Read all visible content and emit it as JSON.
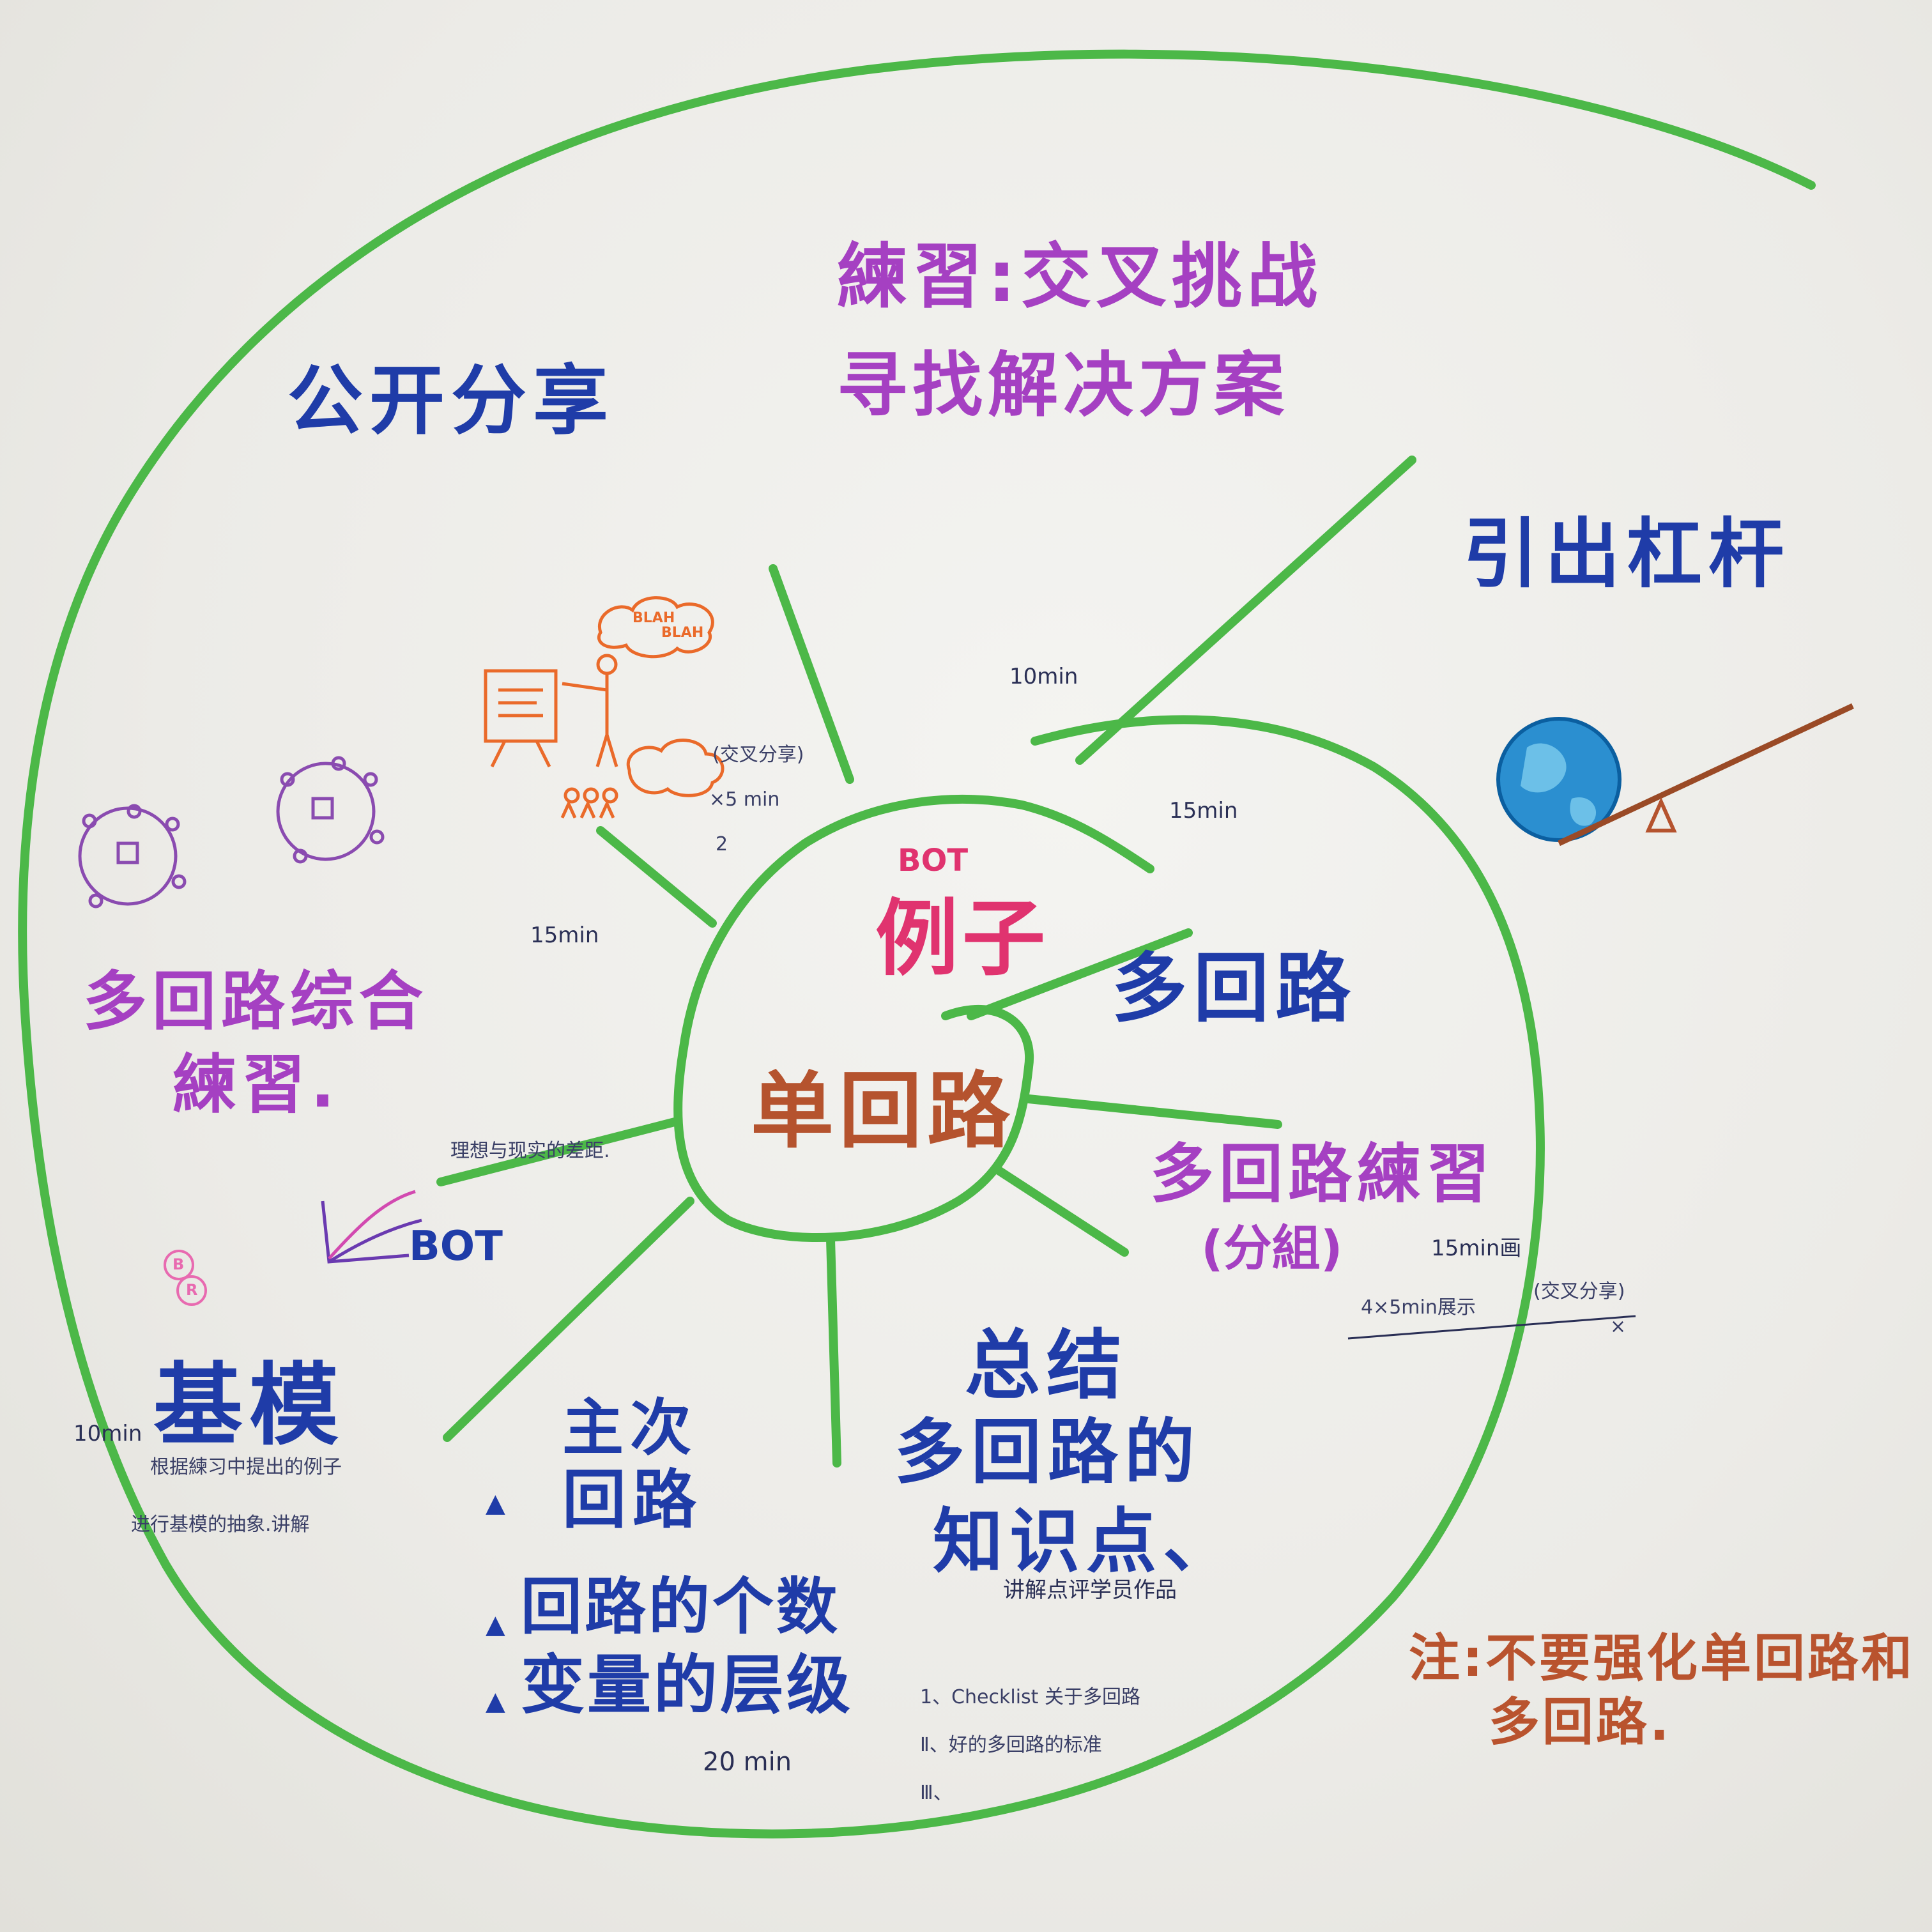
{
  "center": {
    "top_tag": "BOT",
    "example": "例子",
    "core": "单回路"
  },
  "nodes": {
    "public_share": "公开分享",
    "cross_challenge_line1": "練習:交叉挑战",
    "cross_challenge_line2": "寻找解决方案",
    "leverage": "引出杠杆",
    "multi_loop": "多回路",
    "multi_loop_practice": "多回路練習",
    "group": "(分組)",
    "summary": "总结",
    "summary_line2": "多回路的",
    "summary_line3": "知识点、",
    "comment_works": "讲解点评学员作品",
    "primary_loop_line1": "主次",
    "primary_loop_line2": "回路",
    "loop_count": "回路的个数",
    "variable_level": "变量的层级",
    "model_title": "基模",
    "model_desc1": "根据練习中提出的例子",
    "model_desc2": "进行基模的抽象.讲解",
    "multi_loop_comprehensive_line1": "多回路综合",
    "multi_loop_comprehensive_line2": "練習.",
    "gap": "理想与现实的差距.",
    "bot_label": "BOT",
    "br_badge_b": "B",
    "br_badge_r": "R"
  },
  "times": {
    "t10min_top": "10min",
    "t15min_right": "15min",
    "t15min_left": "15min",
    "t15min_draw": "15min画",
    "t10min_left": "10min",
    "t20min": "20 min",
    "cross_share_small": "(交叉分享)",
    "cross_x5": "×5 min",
    "cross_num": "2",
    "display_4x5": "4×5min展示",
    "cross_share2": "(交叉分享)",
    "x_mark": "×"
  },
  "checklist": {
    "item1": "1、Checklist 关于多回路",
    "item2": "Ⅱ、好的多回路的标准",
    "item3": "Ⅲ、"
  },
  "footnote": {
    "line1": "注:不要强化单回路和",
    "line2": "多回路."
  },
  "sketch_text": {
    "blah1": "BLAH",
    "blah2": "BLAH"
  },
  "colors": {
    "green": "#4cb848",
    "blue": "#1f3ca8",
    "purple": "#a540c2",
    "brown": "#b5532e",
    "pink": "#e0336f",
    "orange": "#ea6a2a"
  }
}
